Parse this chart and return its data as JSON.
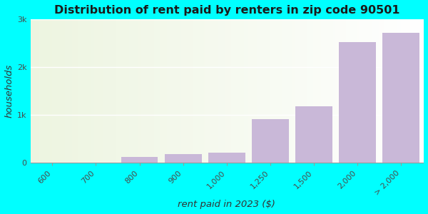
{
  "title": "Distribution of rent paid by renters in zip code 90501",
  "xlabel": "rent paid in 2023 ($)",
  "ylabel": "households",
  "categories": [
    "600",
    "700",
    "800",
    "900",
    "1,000",
    "1,250",
    "1,500",
    "2,000",
    "> 2,000"
  ],
  "values": [
    5,
    5,
    130,
    190,
    220,
    920,
    1180,
    2520,
    2720
  ],
  "bar_color": "#c9b8d8",
  "ylim": [
    0,
    3000
  ],
  "yticks": [
    0,
    1000,
    2000,
    3000
  ],
  "ytick_labels": [
    "0",
    "1k",
    "2k",
    "3k"
  ],
  "background_color": "#00ffff",
  "title_fontsize": 11.5,
  "label_fontsize": 9.5,
  "tick_fontsize": 8,
  "bar_width": 0.85,
  "plot_bg_left_color": "#edf5e0",
  "plot_bg_right_color": "#e8f0f4"
}
